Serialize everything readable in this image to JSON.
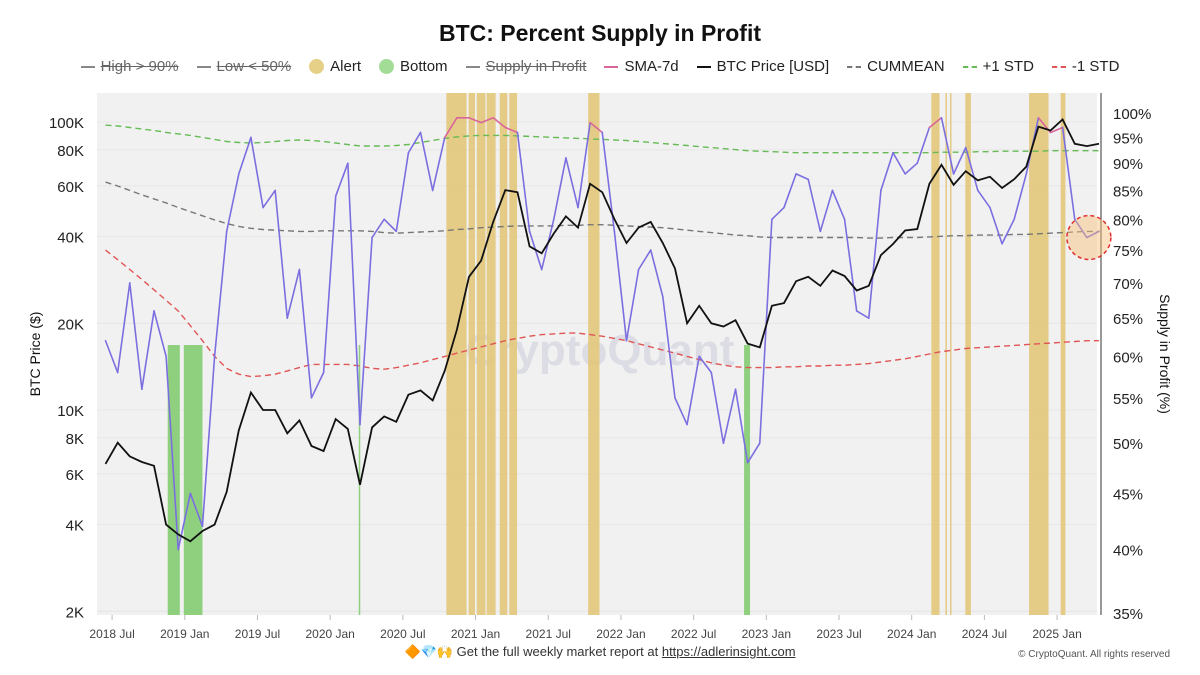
{
  "title": "BTC: Percent Supply in Profit",
  "legend": [
    {
      "label": "High > 90%",
      "kind": "line",
      "color": "#888888",
      "hidden": true
    },
    {
      "label": "Low < 50%",
      "kind": "line",
      "color": "#888888",
      "hidden": true
    },
    {
      "label": "Alert",
      "kind": "dot",
      "color": "#e6cf86",
      "hidden": false
    },
    {
      "label": "Bottom",
      "kind": "dot",
      "color": "#a3dc96",
      "hidden": false
    },
    {
      "label": "Supply in Profit",
      "kind": "line",
      "color": "#888888",
      "hidden": true
    },
    {
      "label": "SMA-7d",
      "kind": "line",
      "color": "#d9669a",
      "hidden": false
    },
    {
      "label": "BTC Price [USD]",
      "kind": "line",
      "color": "#111111",
      "hidden": false
    },
    {
      "label": "CUMMEAN",
      "kind": "dash",
      "color": "#777777",
      "hidden": false
    },
    {
      "label": "+1 STD",
      "kind": "dash",
      "color": "#66bb55",
      "hidden": false
    },
    {
      "label": "-1 STD",
      "kind": "dash",
      "color": "#e05555",
      "hidden": false
    }
  ],
  "footer": {
    "emoji": "🔶💎🙌",
    "text": "Get the full weekly market report at ",
    "link": "https://adlerinsight.com",
    "copyright": "© CryptoQuant. All rights reserved",
    "watermark": "CryptoQuant"
  },
  "chart_data": {
    "type": "line",
    "title": "BTC: Percent Supply in Profit",
    "ylabel_left": "BTC Price ($)",
    "ylabel_right": "Supply in Profit (%)",
    "left_scale": "log",
    "right_scale": "log",
    "ylim_left": [
      2000,
      130000
    ],
    "ylim_right": [
      35,
      101
    ],
    "xlim": [
      "2018-05-24",
      "2025-04-10"
    ],
    "grid": true,
    "legend_placement": "top",
    "x_ticks": [
      "2018 Jul",
      "2019 Jan",
      "2019 Jul",
      "2020 Jan",
      "2020 Jul",
      "2021 Jan",
      "2021 Jul",
      "2022 Jan",
      "2022 Jul",
      "2023 Jan",
      "2023 Jul",
      "2024 Jan",
      "2024 Jul",
      "2025 Jan"
    ],
    "x_tick_dates": [
      "2018-07-01",
      "2019-01-01",
      "2019-07-01",
      "2020-01-01",
      "2020-07-01",
      "2021-01-01",
      "2021-07-01",
      "2022-01-01",
      "2022-07-01",
      "2023-01-01",
      "2023-07-01",
      "2024-01-01",
      "2024-07-01",
      "2025-01-01"
    ],
    "y_ticks_left": [
      {
        "v": 2000,
        "label": "2K"
      },
      {
        "v": 4000,
        "label": "4K"
      },
      {
        "v": 6000,
        "label": "6K"
      },
      {
        "v": 8000,
        "label": "8K"
      },
      {
        "v": 10000,
        "label": "10K"
      },
      {
        "v": 20000,
        "label": "20K"
      },
      {
        "v": 40000,
        "label": "40K"
      },
      {
        "v": 60000,
        "label": "60K"
      },
      {
        "v": 80000,
        "label": "80K"
      },
      {
        "v": 100000,
        "label": "100K"
      }
    ],
    "y_ticks_right": [
      {
        "v": 35,
        "label": "35%"
      },
      {
        "v": 40,
        "label": "40%"
      },
      {
        "v": 45,
        "label": "45%"
      },
      {
        "v": 50,
        "label": "50%"
      },
      {
        "v": 55,
        "label": "55%"
      },
      {
        "v": 60,
        "label": "60%"
      },
      {
        "v": 65,
        "label": "65%"
      },
      {
        "v": 70,
        "label": "70%"
      },
      {
        "v": 75,
        "label": "75%"
      },
      {
        "v": 80,
        "label": "80%"
      },
      {
        "v": 85,
        "label": "85%"
      },
      {
        "v": 90,
        "label": "90%"
      },
      {
        "v": 95,
        "label": "95%"
      },
      {
        "v": 100,
        "label": "100%"
      }
    ],
    "dates": [
      "2018-06",
      "2018-07",
      "2018-08",
      "2018-09",
      "2018-10",
      "2018-11",
      "2018-12",
      "2019-01",
      "2019-02",
      "2019-03",
      "2019-04",
      "2019-05",
      "2019-06",
      "2019-07",
      "2019-08",
      "2019-09",
      "2019-10",
      "2019-11",
      "2019-12",
      "2020-01",
      "2020-02",
      "2020-03",
      "2020-04",
      "2020-05",
      "2020-06",
      "2020-07",
      "2020-08",
      "2020-09",
      "2020-10",
      "2020-11",
      "2020-12",
      "2021-01",
      "2021-02",
      "2021-03",
      "2021-04",
      "2021-05",
      "2021-06",
      "2021-07",
      "2021-08",
      "2021-09",
      "2021-10",
      "2021-11",
      "2021-12",
      "2022-01",
      "2022-02",
      "2022-03",
      "2022-04",
      "2022-05",
      "2022-06",
      "2022-07",
      "2022-08",
      "2022-09",
      "2022-10",
      "2022-11",
      "2022-12",
      "2023-01",
      "2023-02",
      "2023-03",
      "2023-04",
      "2023-05",
      "2023-06",
      "2023-07",
      "2023-08",
      "2023-09",
      "2023-10",
      "2023-11",
      "2023-12",
      "2024-01",
      "2024-02",
      "2024-03",
      "2024-04",
      "2024-05",
      "2024-06",
      "2024-07",
      "2024-08",
      "2024-09",
      "2024-10",
      "2024-11",
      "2024-12",
      "2025-01",
      "2025-02",
      "2025-03",
      "2025-04"
    ],
    "series": [
      {
        "name": "BTC Price [USD]",
        "axis": "left",
        "color": "#111111",
        "values": [
          6500,
          7700,
          6900,
          6600,
          6400,
          4000,
          3700,
          3500,
          3800,
          4000,
          5200,
          8500,
          11500,
          10000,
          10000,
          8300,
          9200,
          7500,
          7200,
          9300,
          8600,
          5500,
          8700,
          9500,
          9100,
          11300,
          11700,
          10800,
          13700,
          19000,
          29000,
          33000,
          45000,
          58000,
          57000,
          37000,
          35000,
          41000,
          47000,
          43000,
          61000,
          57000,
          46000,
          38000,
          43000,
          45000,
          38000,
          31000,
          20000,
          23000,
          20000,
          19500,
          20500,
          17000,
          16500,
          23000,
          23500,
          28000,
          29000,
          27000,
          30500,
          29200,
          26000,
          27000,
          34500,
          37700,
          42000,
          42500,
          61000,
          71000,
          60500,
          67500,
          62700,
          64600,
          59000,
          63300,
          70000,
          96400,
          93400,
          102000,
          84000,
          82500,
          84000
        ]
      },
      {
        "name": "SMA-7d",
        "axis": "right",
        "color": "#7b6fe0",
        "color_above_std": "#d9669a",
        "values": [
          62,
          58,
          70,
          56,
          66,
          60,
          40,
          45,
          42,
          60,
          78,
          88,
          95,
          82,
          85,
          65,
          72,
          55,
          58,
          84,
          90,
          52,
          77,
          80,
          78,
          92,
          96,
          85,
          95,
          99,
          99,
          98,
          99,
          97,
          96,
          78,
          72,
          80,
          91,
          82,
          98,
          96,
          78,
          62,
          72,
          75,
          68,
          55,
          52,
          60,
          58,
          50,
          56,
          48,
          50,
          80,
          82,
          88,
          87,
          78,
          85,
          80,
          66,
          65,
          85,
          92,
          88,
          90,
          97,
          99,
          88,
          93,
          85,
          82,
          76,
          80,
          88,
          99,
          96,
          97,
          80,
          77,
          78
        ]
      },
      {
        "name": "CUMMEAN",
        "axis": "right",
        "color": "#777777",
        "values": [
          86.5,
          85.8,
          85,
          84.2,
          83.5,
          82.8,
          82,
          81.3,
          80.6,
          79.9,
          79.3,
          78.8,
          78.5,
          78.3,
          78.2,
          78.1,
          78,
          78,
          78.1,
          78.1,
          78.1,
          78.1,
          78,
          77.8,
          77.7,
          77.8,
          77.9,
          78,
          78.1,
          78.3,
          78.4,
          78.6,
          78.7,
          78.8,
          78.9,
          78.9,
          78.9,
          78.9,
          79,
          79,
          79.1,
          79.1,
          79,
          78.9,
          78.8,
          78.7,
          78.6,
          78.4,
          78.2,
          78,
          77.8,
          77.6,
          77.4,
          77.3,
          77.1,
          77,
          77,
          77,
          77,
          77,
          77,
          77,
          77,
          76.9,
          76.9,
          77,
          77,
          77,
          77.1,
          77.2,
          77.3,
          77.3,
          77.4,
          77.4,
          77.4,
          77.5,
          77.5,
          77.6,
          77.7,
          77.8,
          77.9,
          78,
          78
        ]
      },
      {
        "name": "+1 STD",
        "axis": "right",
        "color": "#66bb55",
        "values": [
          97.5,
          97.3,
          97,
          96.7,
          96.4,
          96,
          95.7,
          95.4,
          95,
          94.6,
          94.2,
          94,
          93.9,
          94,
          94.2,
          94.4,
          94.5,
          94.4,
          94.2,
          93.9,
          93.6,
          93.3,
          93.3,
          93.3,
          93.4,
          93.6,
          94,
          94.4,
          94.8,
          95.1,
          95.3,
          95.4,
          95.4,
          95.4,
          95.3,
          95.2,
          95.1,
          95,
          94.9,
          94.8,
          94.7,
          94.6,
          94.5,
          94.4,
          94.2,
          94,
          93.8,
          93.6,
          93.4,
          93.2,
          93,
          92.8,
          92.6,
          92.4,
          92.3,
          92.2,
          92.1,
          92,
          92,
          92,
          92,
          92,
          92,
          92,
          92,
          92,
          92,
          92,
          92,
          92.1,
          92.1,
          92.1,
          92.2,
          92.2,
          92.3,
          92.3,
          92.3,
          92.3,
          92.4,
          92.4,
          92.4,
          92.4,
          92.4
        ]
      },
      {
        "name": "-1 STD",
        "axis": "right",
        "color": "#e05555",
        "values": [
          75,
          73.5,
          72,
          70.5,
          69,
          67.5,
          66,
          64,
          62,
          60,
          58.5,
          57.8,
          57.5,
          57.6,
          57.8,
          58.2,
          58.6,
          59,
          59,
          59,
          59,
          58.8,
          58.5,
          58.4,
          58.6,
          58.9,
          59.2,
          59.6,
          60,
          60.4,
          60.8,
          61.2,
          61.6,
          62,
          62.3,
          62.6,
          62.8,
          62.9,
          63,
          63,
          62.8,
          62.6,
          62.3,
          62,
          61.6,
          61.2,
          60.8,
          60.4,
          60,
          59.6,
          59.2,
          58.9,
          58.7,
          58.6,
          58.6,
          58.6,
          58.7,
          58.7,
          58.8,
          58.8,
          58.9,
          58.9,
          59,
          59.1,
          59.3,
          59.5,
          59.7,
          60,
          60.3,
          60.6,
          60.8,
          61,
          61.1,
          61.2,
          61.3,
          61.4,
          61.5,
          61.6,
          61.7,
          61.8,
          61.9,
          62,
          62
        ]
      }
    ],
    "alert_periods": [
      [
        "2020-10-19",
        "2020-12-09"
      ],
      [
        "2020-12-14",
        "2020-12-30"
      ],
      [
        "2021-01-04",
        "2021-01-26"
      ],
      [
        "2021-01-29",
        "2021-02-21"
      ],
      [
        "2021-03-01",
        "2021-03-20"
      ],
      [
        "2021-03-25",
        "2021-04-14"
      ],
      [
        "2021-10-10",
        "2021-11-08"
      ],
      [
        "2024-02-20",
        "2024-03-10"
      ],
      [
        "2024-03-25",
        "2024-03-28"
      ],
      [
        "2024-04-06",
        "2024-04-09"
      ],
      [
        "2024-05-14",
        "2024-05-28"
      ],
      [
        "2024-10-22",
        "2024-12-10"
      ],
      [
        "2025-01-10",
        "2025-01-22"
      ]
    ],
    "bottom_periods": [
      [
        "2018-11-19",
        "2018-12-19"
      ],
      [
        "2018-12-29",
        "2019-02-15"
      ],
      [
        "2020-03-12",
        "2020-03-14"
      ],
      [
        "2022-11-06",
        "2022-11-21"
      ]
    ],
    "annotation": {
      "type": "circle-highlight",
      "date": "2025-03-20",
      "value_percent": 77
    }
  }
}
